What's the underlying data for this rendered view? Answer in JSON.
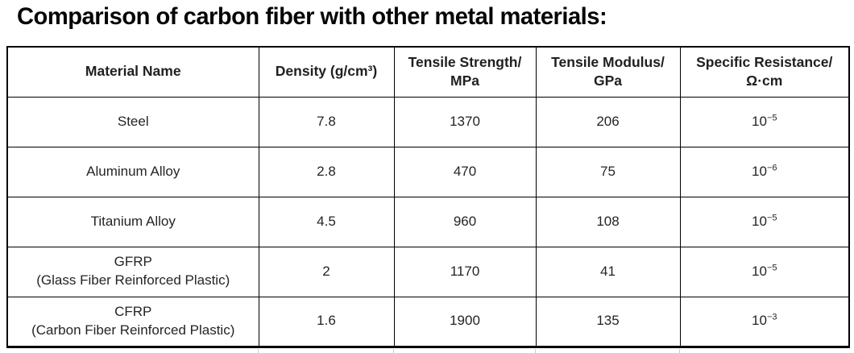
{
  "title": "Comparison of carbon fiber with other metal materials:",
  "colors": {
    "background": "#ffffff",
    "text": "#242424",
    "border": "#000000"
  },
  "table": {
    "headers": [
      {
        "line1": "Material Name"
      },
      {
        "line1": "Density (g/cm³)"
      },
      {
        "line1": "Tensile Strength/",
        "line2": "MPa"
      },
      {
        "line1": "Tensile Modulus/",
        "line2": "GPa"
      },
      {
        "line1": "Specific Resistance/",
        "line2": "Ω·cm"
      }
    ],
    "rows": [
      {
        "material_line1": "Steel",
        "density": "7.8",
        "tensile_strength_mpa": "1370",
        "tensile_modulus_gpa": "206",
        "resistance_base": "10",
        "resistance_exponent": "−5"
      },
      {
        "material_line1": "Aluminum Alloy",
        "density": "2.8",
        "tensile_strength_mpa": "470",
        "tensile_modulus_gpa": "75",
        "resistance_base": "10",
        "resistance_exponent": "−6"
      },
      {
        "material_line1": "Titanium Alloy",
        "density": "4.5",
        "tensile_strength_mpa": "960",
        "tensile_modulus_gpa": "108",
        "resistance_base": "10",
        "resistance_exponent": "−5"
      },
      {
        "material_line1": "GFRP",
        "material_line2": "(Glass Fiber Reinforced Plastic)",
        "density": "2",
        "tensile_strength_mpa": "1170",
        "tensile_modulus_gpa": "41",
        "resistance_base": "10",
        "resistance_exponent": "−5"
      },
      {
        "material_line1": "CFRP",
        "material_line2": "(Carbon Fiber Reinforced Plastic)",
        "density": "1.6",
        "tensile_strength_mpa": "1900",
        "tensile_modulus_gpa": "135",
        "resistance_base": "10",
        "resistance_exponent": "−3"
      }
    ]
  }
}
